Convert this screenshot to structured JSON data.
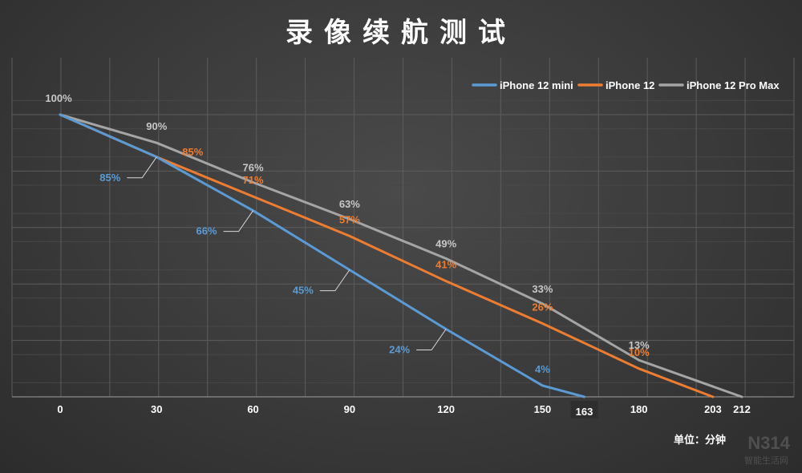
{
  "chart_data": {
    "type": "line",
    "title": "录像续航测试",
    "unit_label": "单位：分钟",
    "x_ticks": [
      "0",
      "30",
      "60",
      "90",
      "120",
      "150",
      "163",
      "180",
      "203",
      "212"
    ],
    "xlim": [
      0,
      212
    ],
    "ylim": [
      0,
      100
    ],
    "grid": true,
    "legend_position": "top-right",
    "series": [
      {
        "name": "iPhone 12 mini",
        "color": "#5b9bd5",
        "x": [
          0,
          30,
          60,
          90,
          120,
          150,
          163
        ],
        "values": [
          100,
          85,
          66,
          45,
          24,
          4,
          0
        ],
        "labels": [
          "",
          "85%",
          "66%",
          "45%",
          "24%",
          "4%",
          ""
        ]
      },
      {
        "name": "iPhone 12",
        "color": "#ed7d31",
        "x": [
          0,
          30,
          60,
          90,
          120,
          150,
          180,
          203
        ],
        "values": [
          100,
          85,
          71,
          57,
          41,
          26,
          10,
          0
        ],
        "labels": [
          "",
          "85%",
          "71%",
          "57%",
          "41%",
          "26%",
          "10%",
          ""
        ]
      },
      {
        "name": "iPhone 12 Pro Max",
        "color": "#a5a5a5",
        "x": [
          0,
          30,
          60,
          90,
          120,
          150,
          180,
          212
        ],
        "values": [
          100,
          90,
          76,
          63,
          49,
          33,
          13,
          0
        ],
        "labels": [
          "100%",
          "90%",
          "76%",
          "63%",
          "49%",
          "33%",
          "13%",
          ""
        ]
      }
    ]
  },
  "watermark": {
    "text": "N314",
    "sub": "智能生活网"
  }
}
